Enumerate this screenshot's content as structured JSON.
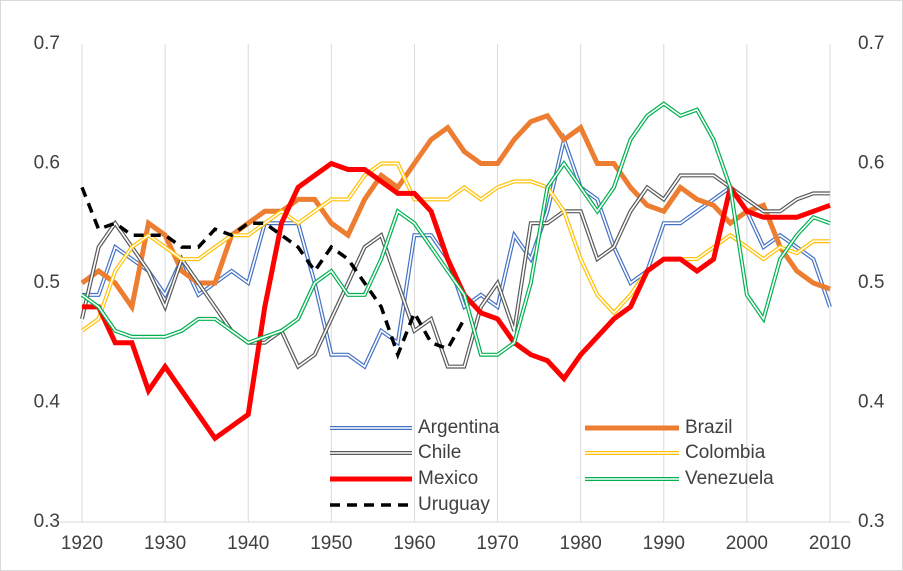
{
  "chart_data": {
    "type": "line",
    "x": [
      1920,
      1922,
      1924,
      1926,
      1928,
      1930,
      1932,
      1934,
      1936,
      1938,
      1940,
      1942,
      1944,
      1946,
      1948,
      1950,
      1952,
      1954,
      1956,
      1958,
      1960,
      1962,
      1964,
      1966,
      1968,
      1970,
      1972,
      1974,
      1976,
      1978,
      1980,
      1982,
      1984,
      1986,
      1988,
      1990,
      1992,
      1994,
      1996,
      1998,
      2000,
      2002,
      2004,
      2006,
      2008,
      2010
    ],
    "xlim": [
      1920,
      2010
    ],
    "xticks": [
      1920,
      1930,
      1940,
      1950,
      1960,
      1970,
      1980,
      1990,
      2000,
      2010
    ],
    "ylim": [
      0.3,
      0.7
    ],
    "yticks": [
      0.3,
      0.4,
      0.5,
      0.6,
      0.7
    ],
    "y2lim": [
      0.3,
      0.7
    ],
    "y2ticks": [
      0.3,
      0.4,
      0.5,
      0.6,
      0.7
    ],
    "grid": true,
    "legend": "lower center",
    "series": [
      {
        "name": "Argentina",
        "color": "#4472c4",
        "style": "double",
        "values": [
          0.49,
          0.49,
          0.53,
          0.52,
          0.51,
          0.49,
          0.52,
          0.49,
          0.5,
          0.51,
          0.5,
          0.55,
          0.55,
          0.55,
          0.5,
          0.44,
          0.44,
          0.43,
          0.46,
          0.45,
          0.54,
          0.54,
          0.52,
          0.48,
          0.49,
          0.48,
          0.54,
          0.52,
          0.56,
          0.62,
          0.58,
          0.57,
          0.53,
          0.5,
          0.51,
          0.55,
          0.55,
          0.56,
          0.57,
          0.58,
          0.56,
          0.53,
          0.54,
          0.53,
          0.52,
          0.48
        ]
      },
      {
        "name": "Brazil",
        "color": "#ed7d31",
        "style": "thick",
        "values": [
          0.5,
          0.51,
          0.5,
          0.48,
          0.55,
          0.54,
          0.51,
          0.5,
          0.5,
          0.54,
          0.55,
          0.56,
          0.56,
          0.57,
          0.57,
          0.55,
          0.54,
          0.57,
          0.59,
          0.58,
          0.6,
          0.62,
          0.63,
          0.61,
          0.6,
          0.6,
          0.62,
          0.635,
          0.64,
          0.62,
          0.63,
          0.6,
          0.6,
          0.58,
          0.565,
          0.56,
          0.58,
          0.57,
          0.565,
          0.55,
          0.56,
          0.565,
          0.53,
          0.51,
          0.5,
          0.495
        ]
      },
      {
        "name": "Chile",
        "color": "#595959",
        "style": "double",
        "values": [
          0.47,
          0.53,
          0.55,
          0.53,
          0.51,
          0.48,
          0.52,
          0.5,
          0.48,
          0.46,
          0.45,
          0.45,
          0.46,
          0.43,
          0.44,
          0.47,
          0.5,
          0.53,
          0.54,
          0.5,
          0.46,
          0.47,
          0.43,
          0.43,
          0.48,
          0.5,
          0.46,
          0.55,
          0.55,
          0.56,
          0.56,
          0.52,
          0.53,
          0.56,
          0.58,
          0.57,
          0.59,
          0.59,
          0.59,
          0.58,
          0.57,
          0.56,
          0.56,
          0.57,
          0.575,
          0.575
        ]
      },
      {
        "name": "Colombia",
        "color": "#ffc000",
        "style": "double",
        "values": [
          0.46,
          0.47,
          0.51,
          0.53,
          0.54,
          0.53,
          0.52,
          0.52,
          0.53,
          0.54,
          0.54,
          0.55,
          0.56,
          0.55,
          0.56,
          0.57,
          0.57,
          0.59,
          0.6,
          0.6,
          0.57,
          0.57,
          0.57,
          0.58,
          0.57,
          0.58,
          0.585,
          0.585,
          0.58,
          0.56,
          0.52,
          0.49,
          0.475,
          0.49,
          0.51,
          0.52,
          0.52,
          0.52,
          0.53,
          0.54,
          0.53,
          0.52,
          0.53,
          0.525,
          0.535,
          0.535
        ]
      },
      {
        "name": "Mexico",
        "color": "#ff0000",
        "style": "thick",
        "values": [
          0.48,
          0.48,
          0.45,
          0.45,
          0.41,
          0.43,
          0.41,
          0.39,
          0.37,
          0.38,
          0.39,
          0.48,
          0.55,
          0.58,
          0.59,
          0.6,
          0.595,
          0.595,
          0.585,
          0.575,
          0.575,
          0.56,
          0.52,
          0.49,
          0.475,
          0.47,
          0.45,
          0.44,
          0.435,
          0.42,
          0.44,
          0.455,
          0.47,
          0.48,
          0.51,
          0.52,
          0.52,
          0.51,
          0.52,
          0.58,
          0.56,
          0.555,
          0.555,
          0.555,
          0.56,
          0.565
        ]
      },
      {
        "name": "Venezuela",
        "color": "#00b050",
        "style": "double",
        "values": [
          0.49,
          0.48,
          0.46,
          0.455,
          0.455,
          0.455,
          0.46,
          0.47,
          0.47,
          0.46,
          0.45,
          0.455,
          0.46,
          0.47,
          0.5,
          0.51,
          0.49,
          0.49,
          0.52,
          0.56,
          0.55,
          0.53,
          0.51,
          0.49,
          0.44,
          0.44,
          0.45,
          0.5,
          0.58,
          0.6,
          0.58,
          0.56,
          0.58,
          0.62,
          0.64,
          0.65,
          0.64,
          0.645,
          0.62,
          0.58,
          0.49,
          0.47,
          0.52,
          0.54,
          0.555,
          0.55
        ]
      },
      {
        "name": "Uruguay",
        "color": "#000000",
        "style": "dashed",
        "values": [
          0.58,
          0.545,
          0.55,
          0.54,
          0.54,
          0.54,
          0.53,
          0.53,
          0.545,
          0.54,
          0.55,
          0.55,
          0.54,
          0.53,
          0.51,
          0.53,
          0.52,
          0.5,
          0.48,
          0.44,
          0.475,
          0.45,
          0.445,
          0.47,
          null,
          null,
          null,
          null,
          null,
          null,
          null,
          null,
          null,
          null,
          null,
          null,
          null,
          null,
          null,
          null,
          null,
          null,
          null,
          null,
          null,
          null
        ]
      }
    ]
  }
}
